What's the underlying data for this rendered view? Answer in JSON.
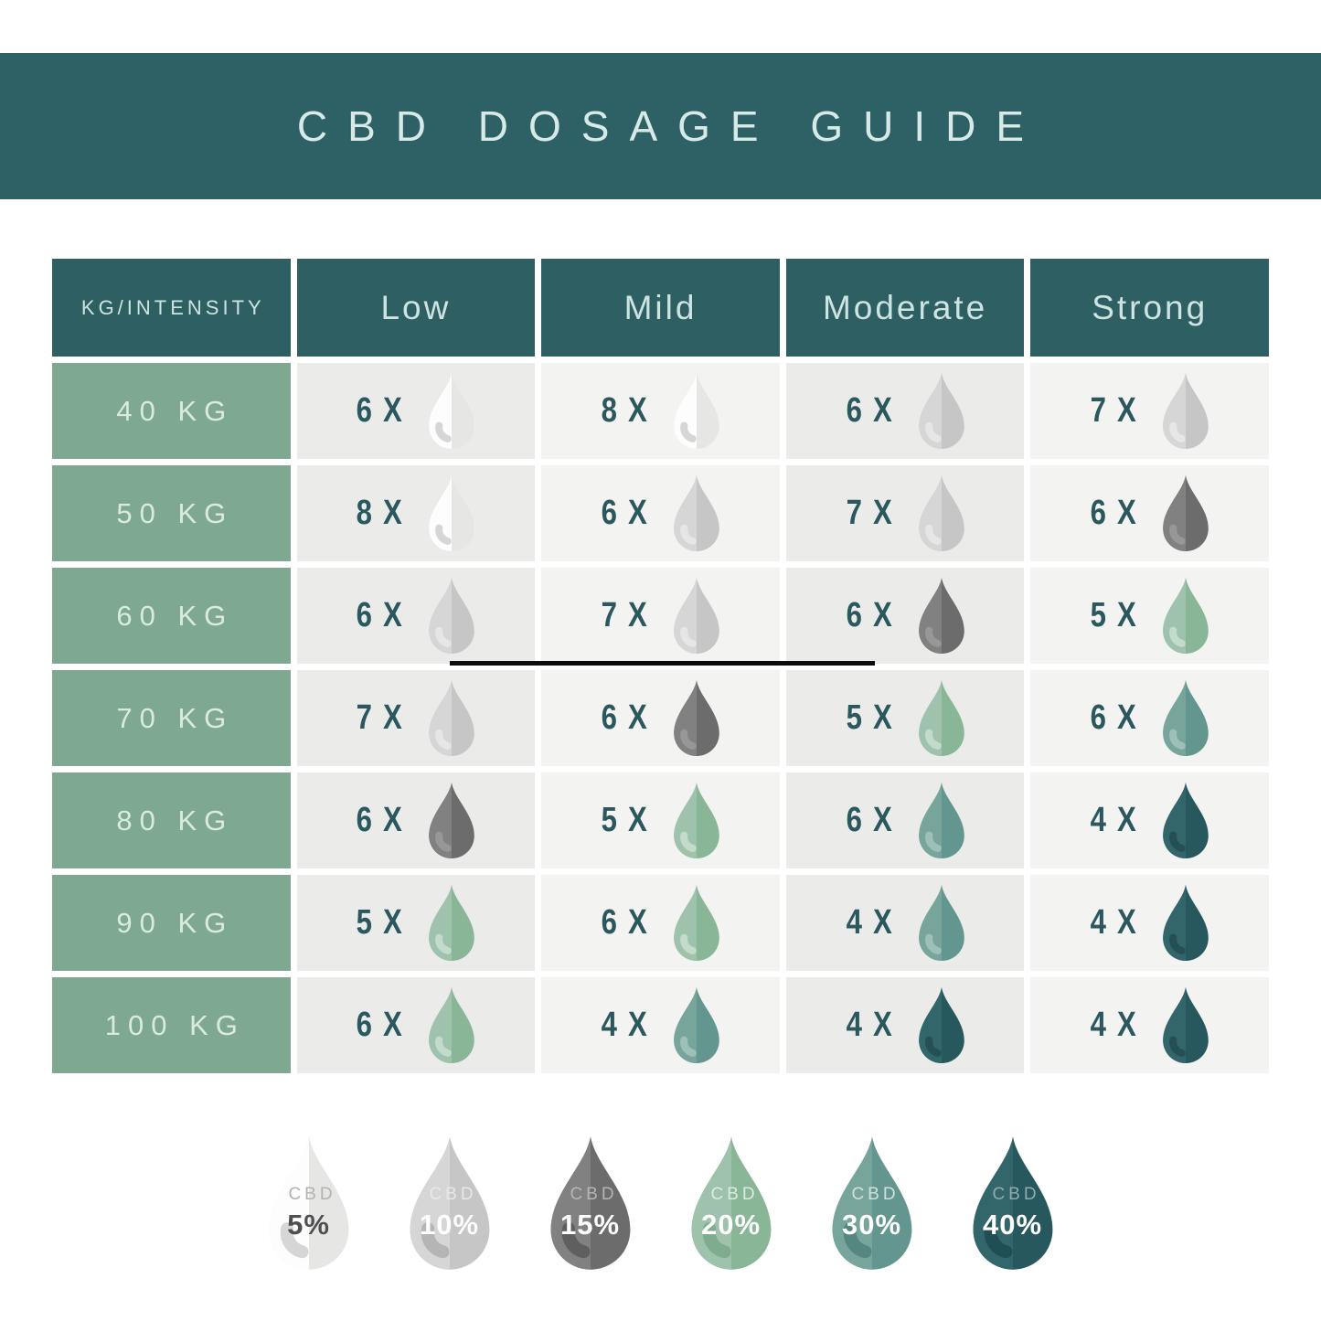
{
  "chart_data": {
    "type": "table",
    "title": "CBD DOSAGE GUIDE",
    "corner_header": "KG/INTENSITY",
    "col_headers": [
      "Low",
      "Mild",
      "Moderate",
      "Strong"
    ],
    "rows": [
      {
        "weight": "40 KG",
        "cells": [
          {
            "count": "6 X",
            "cbd": "5%"
          },
          {
            "count": "8 X",
            "cbd": "5%"
          },
          {
            "count": "6 X",
            "cbd": "10%"
          },
          {
            "count": "7 X",
            "cbd": "10%"
          }
        ]
      },
      {
        "weight": "50 KG",
        "cells": [
          {
            "count": "8 X",
            "cbd": "5%"
          },
          {
            "count": "6 X",
            "cbd": "10%"
          },
          {
            "count": "7 X",
            "cbd": "10%"
          },
          {
            "count": "6 X",
            "cbd": "15%"
          }
        ]
      },
      {
        "weight": "60 KG",
        "cells": [
          {
            "count": "6 X",
            "cbd": "10%"
          },
          {
            "count": "7 X",
            "cbd": "10%"
          },
          {
            "count": "6 X",
            "cbd": "15%"
          },
          {
            "count": "5 X",
            "cbd": "20%"
          }
        ]
      },
      {
        "weight": "70 KG",
        "cells": [
          {
            "count": "7 X",
            "cbd": "10%"
          },
          {
            "count": "6 X",
            "cbd": "15%"
          },
          {
            "count": "5 X",
            "cbd": "20%"
          },
          {
            "count": "6 X",
            "cbd": "30%"
          }
        ]
      },
      {
        "weight": "80 KG",
        "cells": [
          {
            "count": "6 X",
            "cbd": "15%"
          },
          {
            "count": "5 X",
            "cbd": "20%"
          },
          {
            "count": "6 X",
            "cbd": "30%"
          },
          {
            "count": "4 X",
            "cbd": "40%"
          }
        ]
      },
      {
        "weight": "90 KG",
        "cells": [
          {
            "count": "5 X",
            "cbd": "20%"
          },
          {
            "count": "6 X",
            "cbd": "20%"
          },
          {
            "count": "4 X",
            "cbd": "30%"
          },
          {
            "count": "4 X",
            "cbd": "40%"
          }
        ]
      },
      {
        "weight": "100 KG",
        "cells": [
          {
            "count": "6 X",
            "cbd": "20%"
          },
          {
            "count": "4 X",
            "cbd": "30%"
          },
          {
            "count": "4 X",
            "cbd": "40%"
          },
          {
            "count": "4 X",
            "cbd": "40%"
          }
        ]
      }
    ],
    "legend_label": "CBD",
    "legend_items": [
      "5%",
      "10%",
      "15%",
      "20%",
      "30%",
      "40%"
    ]
  },
  "colors": {
    "banner_bg": "#2e6165",
    "banner_text": "#d8eae8",
    "header_cell_bg": "#2d5f63",
    "header_cell_text": "#cde4e2",
    "row_label_bg": "#7fa890",
    "row_label_text": "#d9ebde",
    "cell_bg_a": "#ebebe9",
    "cell_bg_b": "#f3f3f1",
    "count_text": "#2a585e",
    "divider": "#0d0d0d",
    "droplets": {
      "5%": {
        "light": "#fdfdfd",
        "dark": "#e6e6e5",
        "swoosh": "#d6d6d6",
        "legend_swoosh": "#d6d6d6",
        "cbd_text": "#b3b3b3",
        "pct_text": "#4f4f4f"
      },
      "10%": {
        "light": "#d6d6d6",
        "dark": "#c6c6c6",
        "swoosh": "#e6e6e6",
        "legend_swoosh": "#b5b5b5",
        "cbd_text": "#e8e8e8",
        "pct_text": "#ffffff"
      },
      "15%": {
        "light": "#818181",
        "dark": "#6c6c6c",
        "swoosh": "#979797",
        "legend_swoosh": "#5f5f5f",
        "cbd_text": "#b5b5b5",
        "pct_text": "#ffffff"
      },
      "20%": {
        "light": "#9ec2ab",
        "dark": "#8ab698",
        "swoosh": "#c2dbcb",
        "legend_swoosh": "#7fab8e",
        "cbd_text": "#dcebe1",
        "pct_text": "#ffffff"
      },
      "30%": {
        "light": "#78a59b",
        "dark": "#649690",
        "swoosh": "#9dc0b8",
        "legend_swoosh": "#558680",
        "cbd_text": "#cfe0dc",
        "pct_text": "#ffffff"
      },
      "40%": {
        "light": "#32666a",
        "dark": "#27585e",
        "swoosh": "#234f55",
        "legend_swoosh": "#1f4e54",
        "cbd_text": "#8fabad",
        "pct_text": "#ffffff"
      }
    }
  }
}
